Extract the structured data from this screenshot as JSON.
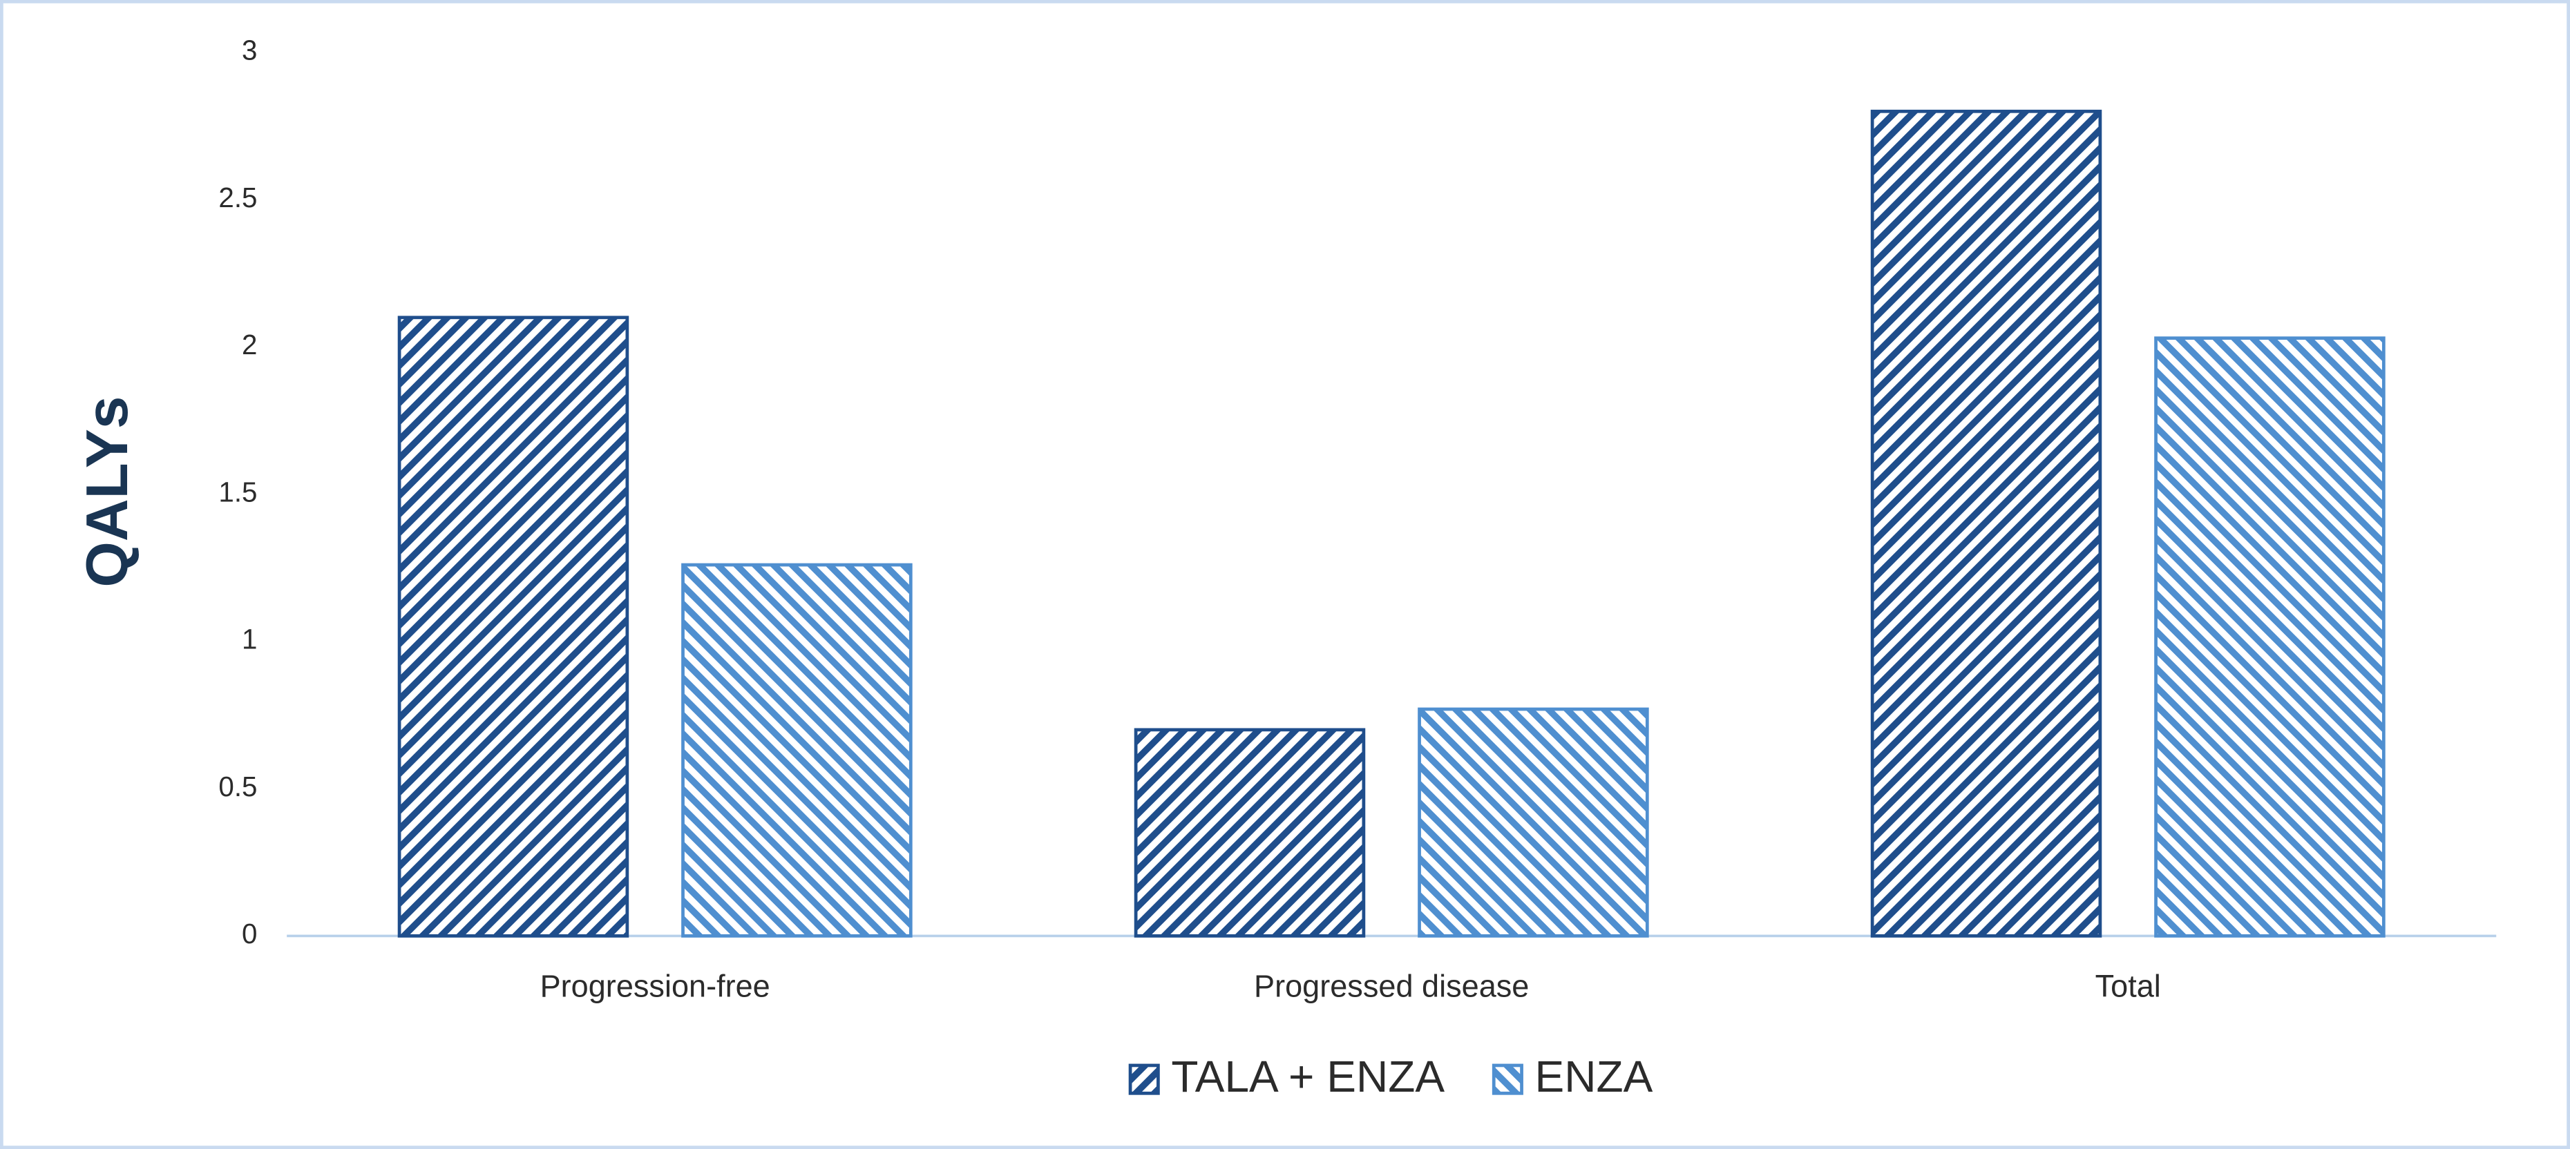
{
  "chart_data": {
    "type": "bar",
    "y_label": "QALYs",
    "categories": [
      "Progression-free",
      "Progressed disease",
      "Total"
    ],
    "series": [
      {
        "name": "TALA + ENZA",
        "color": "#1f4e8c",
        "values": [
          2.1,
          0.7,
          2.8
        ]
      },
      {
        "name": "ENZA",
        "color": "#4f8fd0",
        "values": [
          1.26,
          0.77,
          2.03
        ]
      }
    ],
    "ylim": [
      0,
      3
    ],
    "yticks": [
      0,
      0.5,
      1,
      1.5,
      2,
      2.5,
      3
    ],
    "grid": false,
    "legend": "bottom"
  }
}
